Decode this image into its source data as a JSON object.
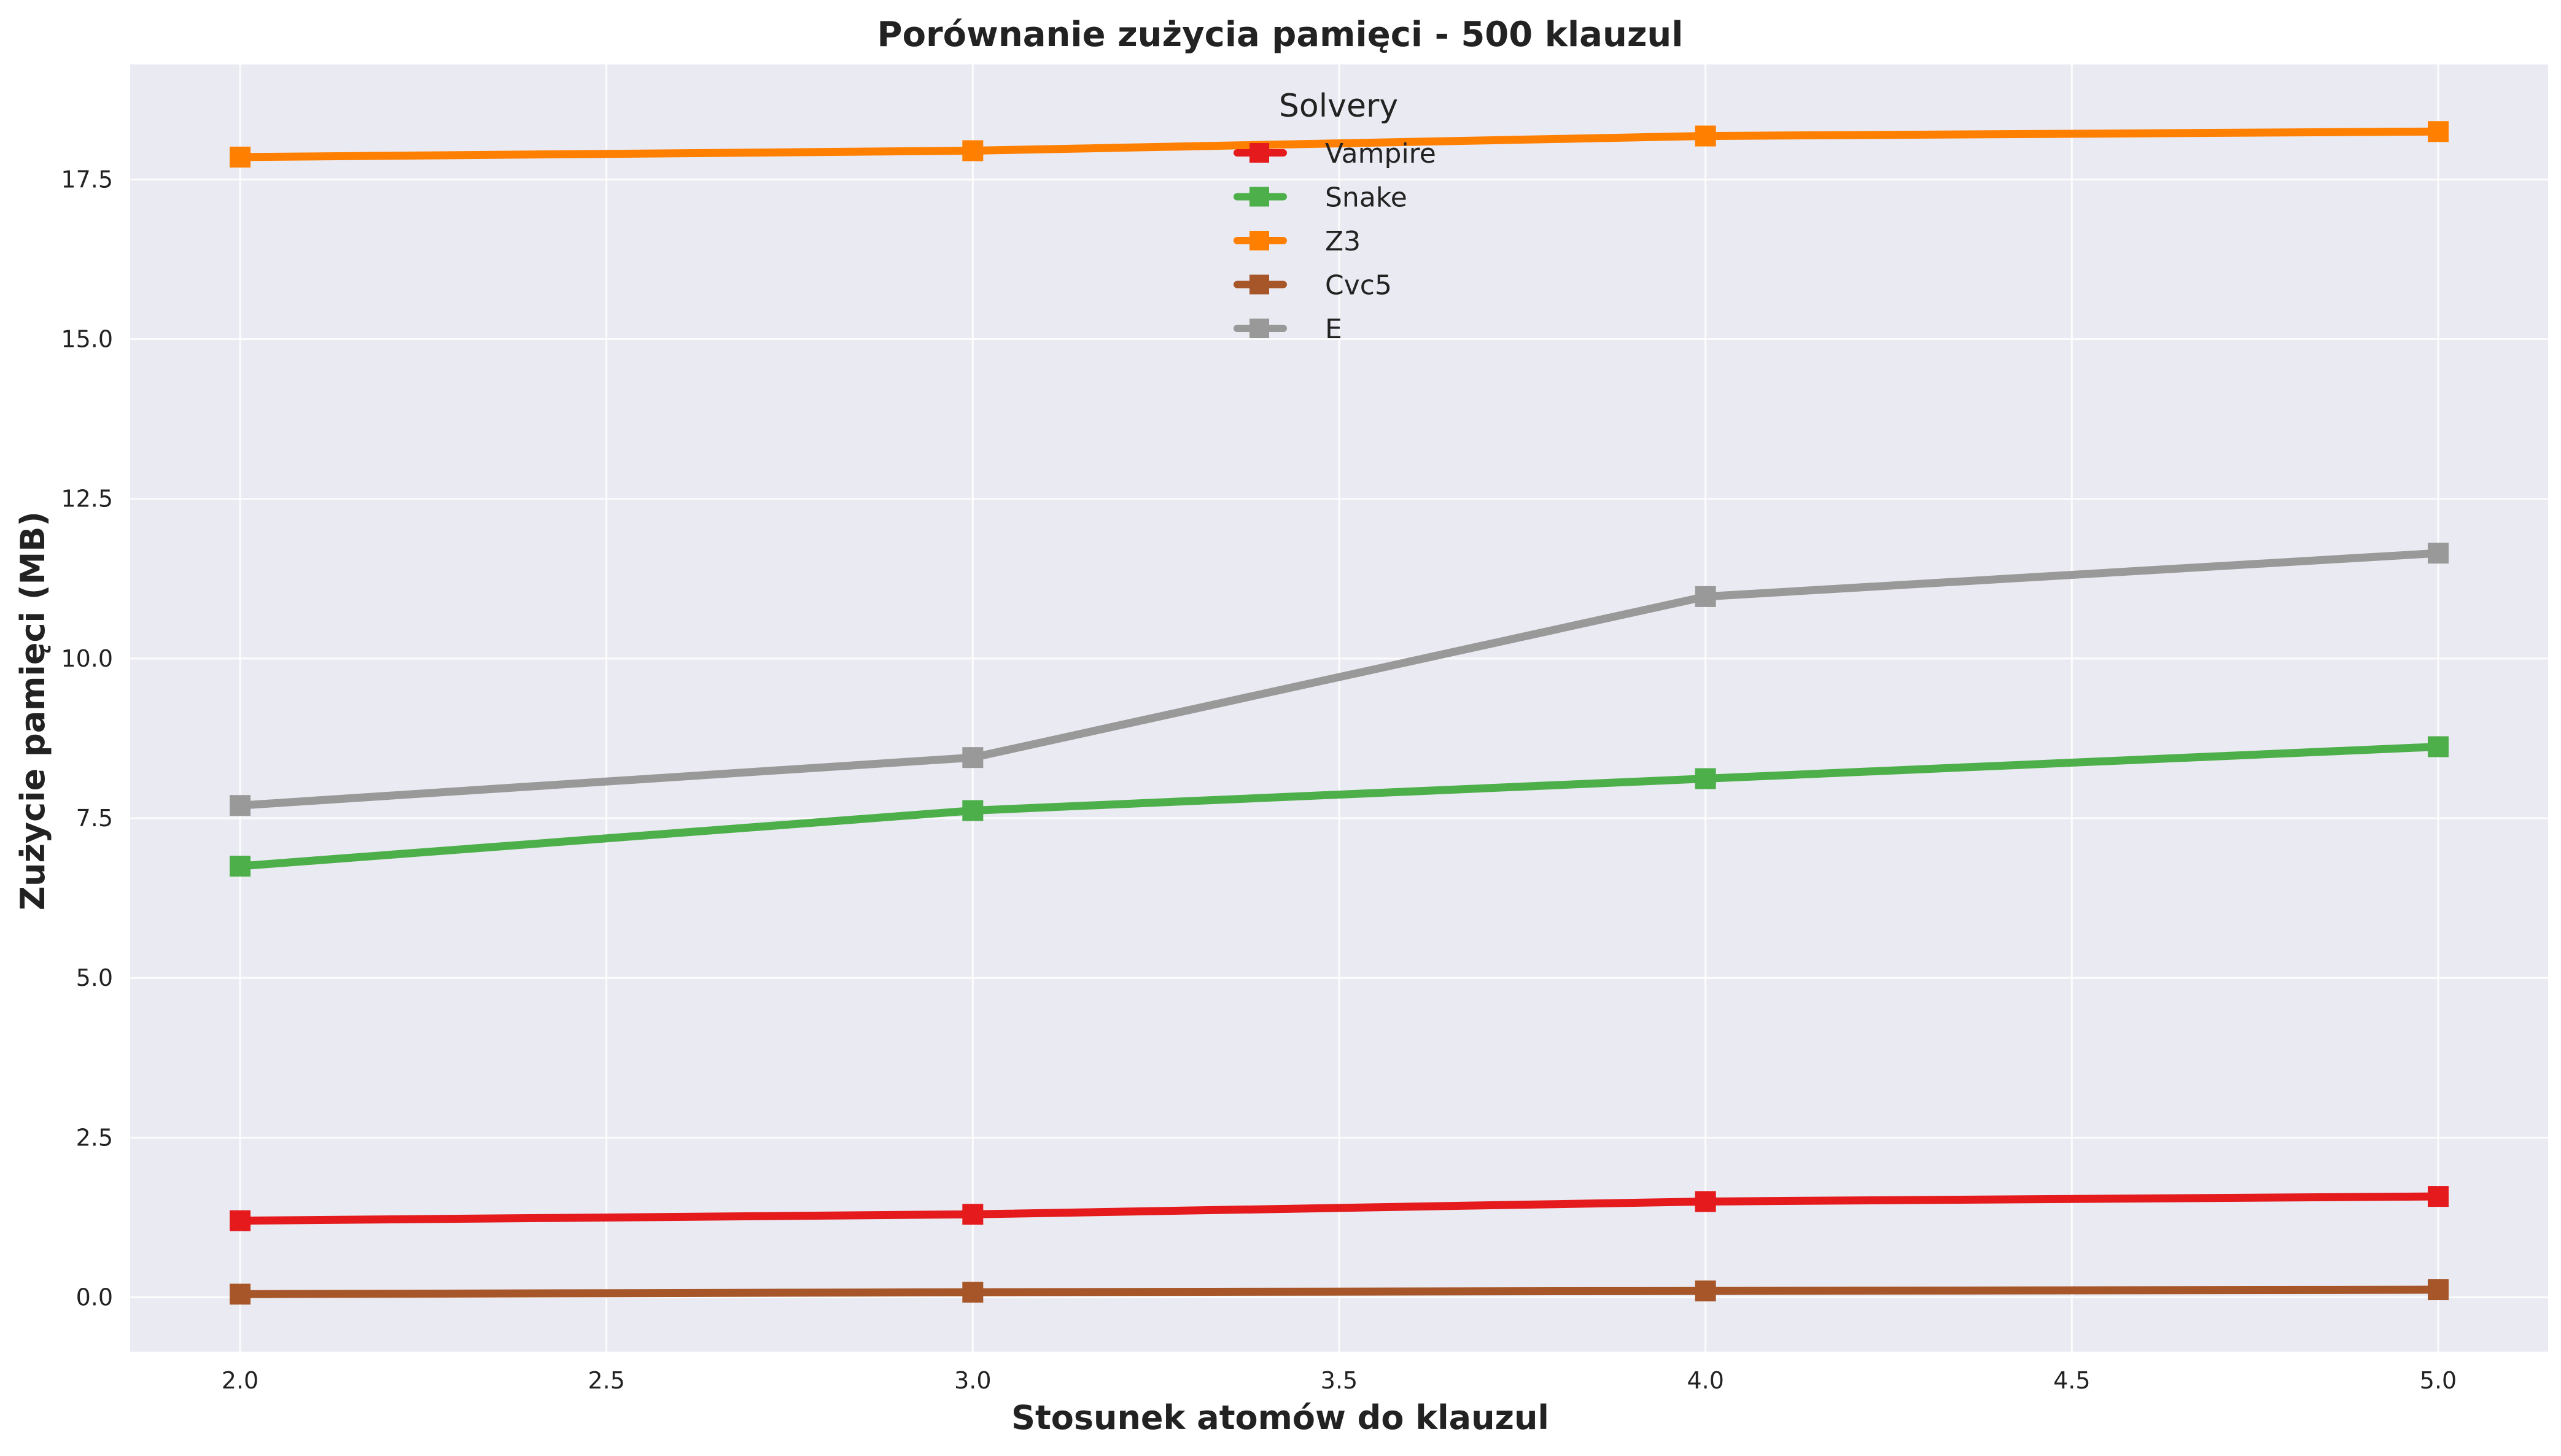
{
  "chart_data": {
    "type": "line",
    "title": "Porównanie zużycia pamięci - 500 klauzul",
    "xlabel": "Stosunek atomów do klauzul",
    "ylabel": "Zużycie pamięci (MB)",
    "x": [
      2.0,
      3.0,
      4.0,
      5.0
    ],
    "xlim": [
      1.85,
      5.15
    ],
    "ylim": [
      -0.85,
      19.3
    ],
    "xticks": [
      "2.0",
      "2.5",
      "3.0",
      "3.5",
      "4.0",
      "4.5",
      "5.0"
    ],
    "yticks": [
      "0.0",
      "2.5",
      "5.0",
      "7.5",
      "10.0",
      "12.5",
      "15.0",
      "17.5"
    ],
    "grid": true,
    "legend": {
      "title": "Solvery",
      "placement": "upper center"
    },
    "series": [
      {
        "name": "Vampire",
        "color": "#e41a1c",
        "values": [
          1.2,
          1.3,
          1.5,
          1.58
        ]
      },
      {
        "name": "Snake",
        "color": "#4daf4a",
        "values": [
          6.75,
          7.62,
          8.12,
          8.62
        ]
      },
      {
        "name": "Z3",
        "color": "#ff7f00",
        "values": [
          17.85,
          17.95,
          18.18,
          18.25
        ]
      },
      {
        "name": "Cvc5",
        "color": "#a65628",
        "values": [
          0.05,
          0.08,
          0.1,
          0.12
        ]
      },
      {
        "name": "E",
        "color": "#999999",
        "values": [
          7.7,
          8.45,
          10.97,
          11.65
        ]
      }
    ]
  }
}
